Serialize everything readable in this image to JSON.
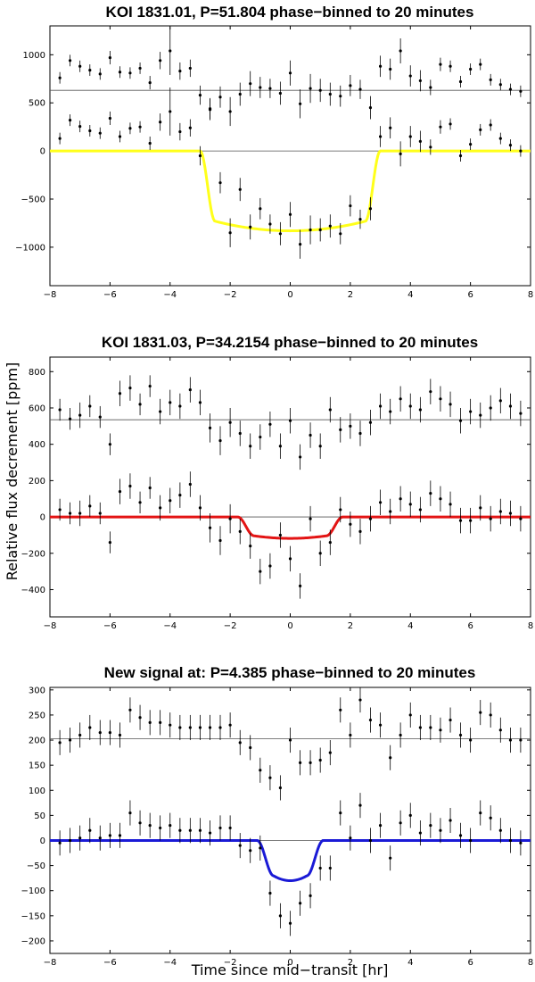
{
  "figure": {
    "ylabel": "Relative flux decrement [ppm]",
    "xlabel": "Time since mid−transit [hr]"
  },
  "chart_data": [
    {
      "type": "scatter",
      "title": "KOI 1831.01, P=51.804 phase−binned to 20 minutes",
      "xlim": [
        -8,
        8
      ],
      "ylim": [
        -1400,
        1300
      ],
      "xticks": [
        -8,
        -6,
        -4,
        -2,
        0,
        2,
        4,
        6,
        8
      ],
      "yticks": [
        -1000,
        -500,
        0,
        500,
        1000
      ],
      "model_color": "#ffff1a",
      "offset": 630,
      "x": [
        -7.67,
        -7.33,
        -7.0,
        -6.67,
        -6.33,
        -6.0,
        -5.67,
        -5.33,
        -5.0,
        -4.67,
        -4.33,
        -4.0,
        -3.67,
        -3.33,
        -3.0,
        -2.67,
        -2.33,
        -2.0,
        -1.67,
        -1.33,
        -1.0,
        -0.67,
        -0.33,
        0.0,
        0.33,
        0.67,
        1.0,
        1.33,
        1.67,
        2.0,
        2.33,
        2.67,
        3.0,
        3.33,
        3.67,
        4.0,
        4.33,
        4.67,
        5.0,
        5.33,
        5.67,
        6.0,
        6.33,
        6.67,
        7.0,
        7.33,
        7.67
      ],
      "detrended": [
        130,
        320,
        255,
        210,
        185,
        340,
        150,
        235,
        250,
        80,
        300,
        410,
        200,
        240,
        -50,
        440,
        -330,
        -850,
        -400,
        -790,
        -600,
        -760,
        -860,
        -660,
        -970,
        -820,
        -820,
        -780,
        -860,
        -570,
        -710,
        -600,
        150,
        240,
        -30,
        150,
        100,
        40,
        250,
        280,
        -50,
        70,
        220,
        270,
        130,
        60,
        0
      ],
      "raw": [
        760,
        940,
        880,
        840,
        800,
        970,
        820,
        810,
        860,
        710,
        940,
        1040,
        830,
        860,
        580,
        430,
        560,
        410,
        590,
        700,
        660,
        650,
        600,
        810,
        490,
        650,
        630,
        590,
        570,
        680,
        640,
        450,
        880,
        850,
        1040,
        780,
        730,
        660,
        900,
        880,
        720,
        850,
        900,
        740,
        690,
        640,
        620
      ],
      "err": [
        60,
        60,
        60,
        60,
        60,
        70,
        60,
        60,
        60,
        70,
        90,
        250,
        90,
        90,
        100,
        110,
        110,
        150,
        120,
        130,
        110,
        100,
        120,
        130,
        150,
        150,
        120,
        120,
        110,
        110,
        100,
        120,
        110,
        110,
        130,
        110,
        110,
        80,
        70,
        60,
        60,
        60,
        60,
        60,
        60,
        60,
        60
      ],
      "model": {
        "depth": 830,
        "t_full": 2.5,
        "t_total": 3.0
      }
    },
    {
      "type": "scatter",
      "title": "KOI 1831.03, P=34.2154 phase−binned to 20 minutes",
      "xlim": [
        -8,
        8
      ],
      "ylim": [
        -550,
        880
      ],
      "xticks": [
        -8,
        -6,
        -4,
        -2,
        0,
        2,
        4,
        6,
        8
      ],
      "yticks": [
        -400,
        -200,
        0,
        200,
        400,
        600,
        800
      ],
      "model_color": "#e31414",
      "offset": 535,
      "x": [
        -7.67,
        -7.33,
        -7.0,
        -6.67,
        -6.33,
        -6.0,
        -5.67,
        -5.33,
        -5.0,
        -4.67,
        -4.33,
        -4.0,
        -3.67,
        -3.33,
        -3.0,
        -2.67,
        -2.33,
        -2.0,
        -1.67,
        -1.33,
        -1.0,
        -0.67,
        -0.33,
        0.0,
        0.33,
        0.67,
        1.0,
        1.33,
        1.67,
        2.0,
        2.33,
        2.67,
        3.0,
        3.33,
        3.67,
        4.0,
        4.33,
        4.67,
        5.0,
        5.33,
        5.67,
        6.0,
        6.33,
        6.67,
        7.0,
        7.33,
        7.67
      ],
      "detrended": [
        40,
        20,
        20,
        60,
        20,
        -140,
        140,
        170,
        80,
        160,
        50,
        90,
        120,
        180,
        50,
        -60,
        -130,
        -10,
        -80,
        -160,
        -300,
        -270,
        -100,
        -230,
        -380,
        -10,
        -200,
        -140,
        40,
        -40,
        -80,
        -10,
        80,
        30,
        100,
        70,
        40,
        130,
        100,
        70,
        -20,
        -20,
        50,
        -10,
        30,
        20,
        -10
      ],
      "raw": [
        590,
        540,
        560,
        610,
        550,
        400,
        680,
        710,
        620,
        720,
        580,
        630,
        610,
        700,
        630,
        490,
        420,
        520,
        460,
        390,
        440,
        510,
        390,
        530,
        330,
        450,
        390,
        590,
        480,
        500,
        460,
        520,
        610,
        580,
        650,
        610,
        590,
        690,
        650,
        620,
        530,
        580,
        560,
        600,
        640,
        610,
        570
      ],
      "err": [
        60,
        60,
        70,
        60,
        60,
        60,
        70,
        70,
        60,
        60,
        70,
        70,
        70,
        70,
        70,
        80,
        80,
        80,
        70,
        70,
        70,
        70,
        70,
        70,
        70,
        70,
        70,
        70,
        70,
        70,
        70,
        70,
        70,
        70,
        70,
        70,
        70,
        70,
        70,
        70,
        70,
        70,
        70,
        70,
        70,
        70,
        70
      ],
      "model": {
        "depth": 118,
        "t_full": 1.2,
        "t_total": 1.75
      }
    },
    {
      "type": "scatter",
      "title": "New signal at: P=4.385 phase−binned to 20 minutes",
      "xlim": [
        -8,
        8
      ],
      "ylim": [
        -225,
        305
      ],
      "xticks": [
        -8,
        -6,
        -4,
        -2,
        0,
        2,
        4,
        6,
        8
      ],
      "yticks": [
        -200,
        -150,
        -100,
        -50,
        0,
        50,
        100,
        150,
        200,
        250,
        300
      ],
      "model_color": "#1a1ad6",
      "offset": 203,
      "x": [
        -7.67,
        -7.33,
        -7.0,
        -6.67,
        -6.33,
        -6.0,
        -5.67,
        -5.33,
        -5.0,
        -4.67,
        -4.33,
        -4.0,
        -3.67,
        -3.33,
        -3.0,
        -2.67,
        -2.33,
        -2.0,
        -1.67,
        -1.33,
        -1.0,
        -0.67,
        -0.33,
        0.0,
        0.33,
        0.67,
        1.0,
        1.33,
        1.67,
        2.0,
        2.33,
        2.67,
        3.0,
        3.33,
        3.67,
        4.0,
        4.33,
        4.67,
        5.0,
        5.33,
        5.67,
        6.0,
        6.33,
        6.67,
        7.0,
        7.33,
        7.67
      ],
      "detrended": [
        -5,
        0,
        5,
        20,
        5,
        10,
        10,
        55,
        35,
        30,
        25,
        30,
        20,
        20,
        20,
        15,
        25,
        25,
        -10,
        -20,
        -15,
        -105,
        -150,
        -165,
        -125,
        -110,
        -55,
        -55,
        55,
        5,
        70,
        0,
        30,
        -35,
        35,
        50,
        15,
        30,
        20,
        40,
        10,
        0,
        55,
        45,
        20,
        0,
        -5
      ],
      "raw": [
        195,
        200,
        210,
        225,
        215,
        215,
        210,
        260,
        245,
        235,
        235,
        230,
        225,
        225,
        225,
        225,
        225,
        230,
        195,
        185,
        140,
        125,
        105,
        200,
        155,
        155,
        160,
        175,
        260,
        210,
        280,
        240,
        230,
        165,
        210,
        250,
        225,
        225,
        220,
        240,
        210,
        200,
        255,
        250,
        220,
        200,
        200
      ],
      "err": [
        25,
        25,
        25,
        25,
        25,
        25,
        25,
        25,
        25,
        25,
        25,
        25,
        25,
        25,
        25,
        25,
        25,
        25,
        25,
        25,
        25,
        25,
        25,
        25,
        25,
        25,
        25,
        25,
        25,
        25,
        25,
        25,
        25,
        25,
        25,
        25,
        25,
        25,
        25,
        25,
        25,
        25,
        25,
        25,
        25,
        25,
        25
      ],
      "model": {
        "depth": 80,
        "t_full": 0.55,
        "t_total": 1.1
      }
    }
  ]
}
